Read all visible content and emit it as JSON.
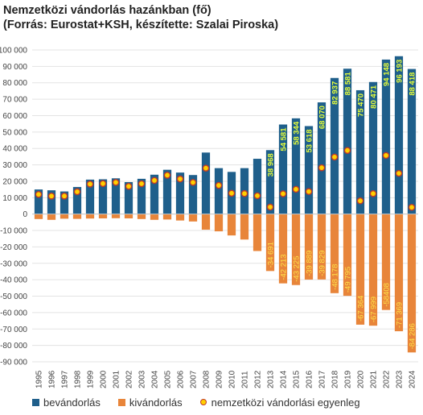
{
  "title": "Nemzetközi vándorlás hazánkban (fő)",
  "subtitle": "(Forrás: Eurostat+KSH, készítette: Szalai Piroska)",
  "colors": {
    "immigration": "#1f5f8b",
    "emigration": "#e8853a",
    "balance_fill": "#ffd000",
    "balance_stroke": "#c0392b",
    "label_immigration": "#e8ff3a",
    "label_emigration": "#ffe24a",
    "grid": "#e3e3e3"
  },
  "chart_data": {
    "type": "bar",
    "categories": [
      "1995",
      "1996",
      "1997",
      "1998",
      "1999",
      "2000",
      "2001",
      "2002",
      "2003",
      "2004",
      "2005",
      "2006",
      "2007",
      "2008",
      "2009",
      "2010",
      "2011",
      "2012",
      "2013",
      "2014",
      "2015",
      "2016",
      "2017",
      "2018",
      "2019",
      "2020",
      "2021",
      "2022",
      "2023",
      "2024"
    ],
    "ylim": [
      -90000,
      100000
    ],
    "ytick_labels": [
      "100 000",
      "90 000",
      "80 000",
      "70 000",
      "60 000",
      "50 000",
      "40 000",
      "30 000",
      "20 000",
      "10 000",
      "0",
      "-10 000",
      "-20 000",
      "-30 000",
      "-40 000",
      "-50 000",
      "-60 000",
      "-70 000",
      "-80 000",
      "-90 000"
    ],
    "ytick_values": [
      100000,
      90000,
      80000,
      70000,
      60000,
      50000,
      40000,
      30000,
      20000,
      10000,
      0,
      -10000,
      -20000,
      -30000,
      -40000,
      -50000,
      -60000,
      -70000,
      -80000,
      -90000
    ],
    "grid": true,
    "legend_position": "bottom",
    "series": [
      {
        "name": "bevándorlás",
        "kind": "bar",
        "values": [
          15000,
          14500,
          13800,
          16500,
          21000,
          21200,
          21800,
          19500,
          21500,
          24000,
          27000,
          25300,
          23800,
          37500,
          28000,
          25700,
          28000,
          33700,
          38968,
          54581,
          58344,
          53618,
          68070,
          82937,
          88581,
          75470,
          80471,
          94148,
          96193,
          88418
        ],
        "labels": [
          "",
          "",
          "",
          "",
          "",
          "",
          "",
          "",
          "",
          "",
          "",
          "",
          "",
          "",
          "",
          "",
          "",
          "",
          "38 968",
          "54 581",
          "58 344",
          "53 618",
          "68 070",
          "82 937",
          "88 581",
          "75 470",
          "80 471",
          "94 148",
          "96 193",
          "88 418"
        ]
      },
      {
        "name": "kivándorlás",
        "kind": "bar",
        "values": [
          -3000,
          -3500,
          -2800,
          -2900,
          -2700,
          -2600,
          -2500,
          -2600,
          -3000,
          -3500,
          -3300,
          -3900,
          -4500,
          -9500,
          -10500,
          -13000,
          -15500,
          -22500,
          -34691,
          -42213,
          -43225,
          -39889,
          -39829,
          -48178,
          -49795,
          -67364,
          -67999,
          -58408,
          -71369,
          -84286
        ],
        "labels": [
          "",
          "",
          "",
          "",
          "",
          "",
          "",
          "",
          "",
          "",
          "",
          "",
          "",
          "",
          "",
          "",
          "",
          "",
          "-34 691",
          "-42 213",
          "-43 225",
          "-39 889",
          "-39 829",
          "-48 178",
          "-49 795",
          "-67 364",
          "-67 999",
          "-58408",
          "-71 369",
          "-84 286"
        ]
      },
      {
        "name": "nemzetközi vándorlási egyenleg",
        "kind": "scatter",
        "values": [
          12000,
          11000,
          11000,
          13600,
          18300,
          18600,
          19300,
          16900,
          18500,
          20500,
          23700,
          21400,
          19300,
          28000,
          17500,
          12700,
          12500,
          11200,
          4277,
          12368,
          15119,
          13729,
          28241,
          34759,
          38786,
          8106,
          12472,
          35740,
          24824,
          4132
        ]
      }
    ]
  }
}
